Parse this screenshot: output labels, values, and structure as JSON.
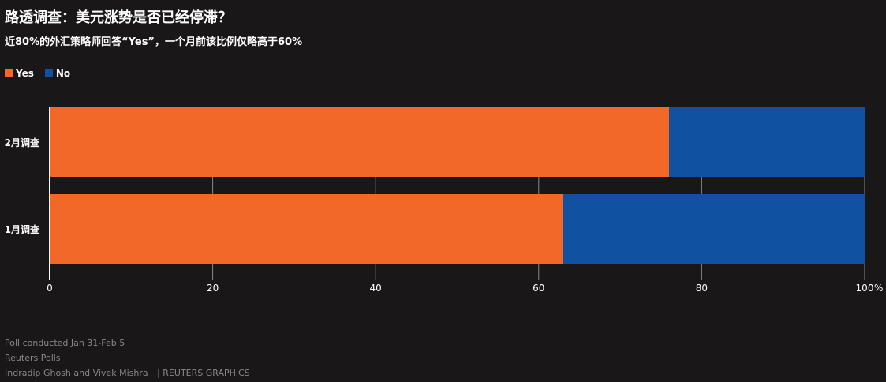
{
  "header": {
    "title": "路透调查：美元涨势是否已经停滞？",
    "subtitle": "近80%的外汇策略师回答“Yes”，一个月前该比例仅略高于60%"
  },
  "colors": {
    "yes": "#f26829",
    "no": "#1052a1",
    "background": "#1a1719",
    "grid": "#8a8789"
  },
  "chart_data": {
    "type": "bar",
    "orientation": "horizontal",
    "stacked": true,
    "categories": [
      "2月调查",
      "1月调查"
    ],
    "series": [
      {
        "name": "Yes",
        "values": [
          76,
          63
        ]
      },
      {
        "name": "No",
        "values": [
          24,
          37
        ]
      }
    ],
    "xlim": [
      0,
      100
    ],
    "xticks": [
      "0",
      "20",
      "40",
      "60",
      "80",
      "100"
    ],
    "xunit": "%",
    "grid": true,
    "legend": "top-left"
  },
  "footer": {
    "line1": "Poll conducted Jan 31-Feb 5",
    "line2": "Reuters Polls",
    "line3": "Indradip Ghosh and Vivek Mishra",
    "line4": "| REUTERS GRAPHICS"
  }
}
